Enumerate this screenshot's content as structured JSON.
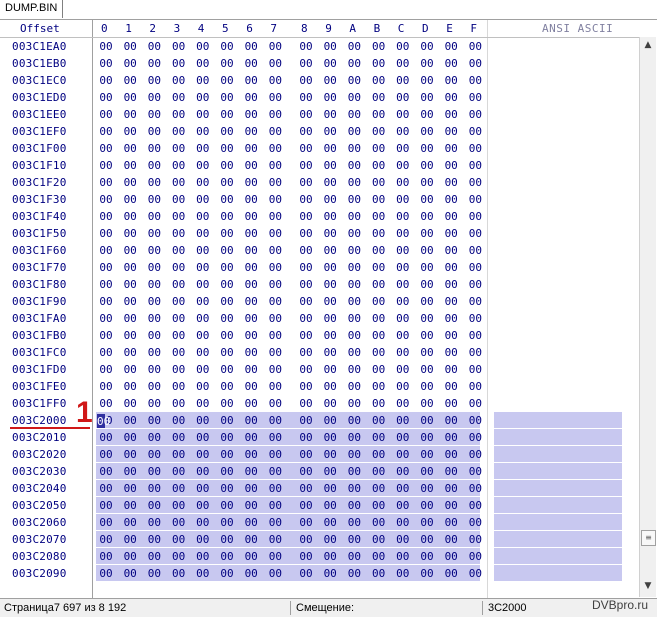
{
  "tab": {
    "label": "DUMP.BIN"
  },
  "header": {
    "offset_label": "Offset",
    "columns": [
      "0",
      "1",
      "2",
      "3",
      "4",
      "5",
      "6",
      "7",
      "8",
      "9",
      "A",
      "B",
      "C",
      "D",
      "E",
      "F"
    ],
    "ascii_label": "ANSI ASCII"
  },
  "rows": [
    {
      "offset": "003C1EA0",
      "selected": false
    },
    {
      "offset": "003C1EB0",
      "selected": false
    },
    {
      "offset": "003C1EC0",
      "selected": false
    },
    {
      "offset": "003C1ED0",
      "selected": false
    },
    {
      "offset": "003C1EE0",
      "selected": false
    },
    {
      "offset": "003C1EF0",
      "selected": false
    },
    {
      "offset": "003C1F00",
      "selected": false
    },
    {
      "offset": "003C1F10",
      "selected": false
    },
    {
      "offset": "003C1F20",
      "selected": false
    },
    {
      "offset": "003C1F30",
      "selected": false
    },
    {
      "offset": "003C1F40",
      "selected": false
    },
    {
      "offset": "003C1F50",
      "selected": false
    },
    {
      "offset": "003C1F60",
      "selected": false
    },
    {
      "offset": "003C1F70",
      "selected": false
    },
    {
      "offset": "003C1F80",
      "selected": false
    },
    {
      "offset": "003C1F90",
      "selected": false
    },
    {
      "offset": "003C1FA0",
      "selected": false
    },
    {
      "offset": "003C1FB0",
      "selected": false
    },
    {
      "offset": "003C1FC0",
      "selected": false
    },
    {
      "offset": "003C1FD0",
      "selected": false
    },
    {
      "offset": "003C1FE0",
      "selected": false
    },
    {
      "offset": "003C1FF0",
      "selected": false
    },
    {
      "offset": "003C2000",
      "selected": true
    },
    {
      "offset": "003C2010",
      "selected": true
    },
    {
      "offset": "003C2020",
      "selected": true
    },
    {
      "offset": "003C2030",
      "selected": true
    },
    {
      "offset": "003C2040",
      "selected": true
    },
    {
      "offset": "003C2050",
      "selected": true
    },
    {
      "offset": "003C2060",
      "selected": true
    },
    {
      "offset": "003C2070",
      "selected": true
    },
    {
      "offset": "003C2080",
      "selected": true
    },
    {
      "offset": "003C2090",
      "selected": true
    }
  ],
  "byte_value": "00",
  "marker": {
    "label": "1",
    "color": "#d01818"
  },
  "colors": {
    "selection": "#c8c8f0",
    "text": "#000080",
    "cursor": "#3030a0"
  },
  "scrollbar": {
    "up_icon": "▲",
    "down_icon": "▼",
    "thumb_icon": "≡"
  },
  "status": {
    "page": "Страница7 697 из 8 192",
    "offset_label": "Смещение:",
    "offset_value": "3C2000"
  },
  "watermark": "DVBpro.ru"
}
